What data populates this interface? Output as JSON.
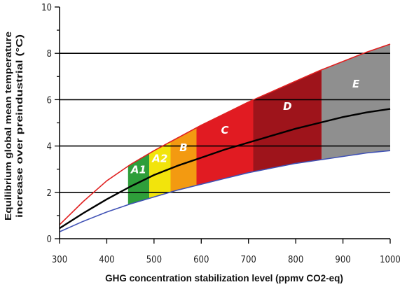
{
  "chart_data": {
    "type": "area",
    "xlabel": "GHG concentration stabilization level (ppmv CO2-eq)",
    "ylabel_line1": "Equilibrium global mean temperature",
    "ylabel_line2": "increase over preindustrial (°C)",
    "xlim": [
      300,
      1000
    ],
    "ylim": [
      0,
      10
    ],
    "x_ticks": [
      300,
      400,
      500,
      600,
      700,
      800,
      900,
      1000
    ],
    "y_ticks": [
      0,
      2,
      4,
      6,
      8,
      10
    ],
    "gridlines_y": [
      2,
      4,
      6,
      8
    ],
    "x": [
      300,
      350,
      400,
      450,
      500,
      550,
      600,
      650,
      700,
      750,
      800,
      850,
      900,
      950,
      1000
    ],
    "series": [
      {
        "color": "#e02020",
        "values": [
          0.6,
          1.6,
          2.5,
          3.2,
          3.8,
          4.35,
          4.9,
          5.4,
          5.9,
          6.35,
          6.8,
          7.25,
          7.65,
          8.05,
          8.4
        ]
      },
      {
        "color": "#000000",
        "values": [
          0.45,
          1.1,
          1.7,
          2.25,
          2.75,
          3.15,
          3.5,
          3.85,
          4.15,
          4.45,
          4.75,
          5.0,
          5.25,
          5.45,
          5.6
        ]
      },
      {
        "color": "#3f51b5",
        "values": [
          0.3,
          0.75,
          1.15,
          1.5,
          1.8,
          2.1,
          2.35,
          2.6,
          2.85,
          3.05,
          3.25,
          3.4,
          3.55,
          3.7,
          3.8
        ]
      }
    ],
    "bands": [
      {
        "label": "A1",
        "from": 445,
        "to": 490,
        "color": "#2e9e3a"
      },
      {
        "label": "A2",
        "from": 490,
        "to": 535,
        "color": "#f2e40c"
      },
      {
        "label": "B",
        "from": 535,
        "to": 590,
        "color": "#f39a11"
      },
      {
        "label": "C",
        "from": 590,
        "to": 710,
        "color": "#e11b22"
      },
      {
        "label": "D",
        "from": 710,
        "to": 855,
        "color": "#9e141b"
      },
      {
        "label": "E",
        "from": 855,
        "to": 1000,
        "color": "#8f8f8f"
      }
    ]
  }
}
